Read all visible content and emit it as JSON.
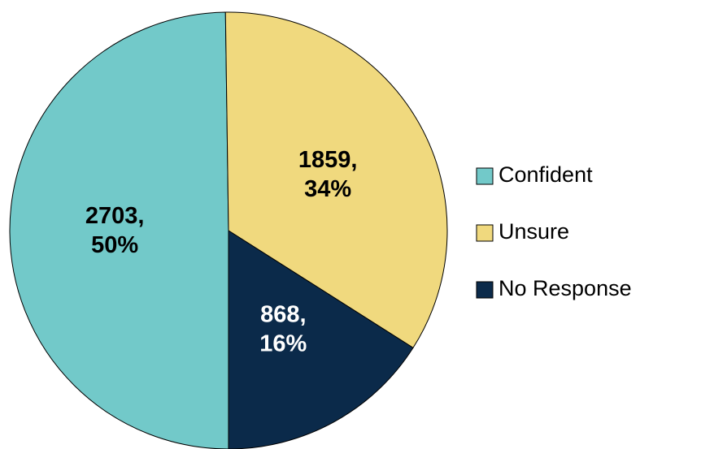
{
  "chart_data": {
    "type": "pie",
    "categories": [
      "Confident",
      "Unsure",
      "No Response"
    ],
    "values": [
      2703,
      1859,
      868
    ],
    "value_labels": [
      [
        "2703,",
        "50%"
      ],
      [
        "1859,",
        "34%"
      ],
      [
        "868,",
        "16%"
      ]
    ],
    "colors": [
      "#72c9c9",
      "#f0d97e",
      "#0b2a4a"
    ],
    "label_colors": [
      "#000000",
      "#000000",
      "#ffffff"
    ],
    "legend": "right"
  }
}
